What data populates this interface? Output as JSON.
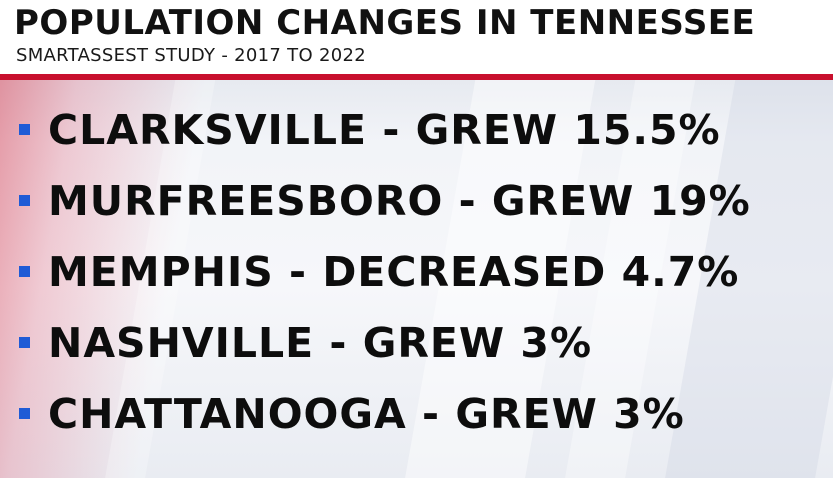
{
  "header": {
    "title": "POPULATION CHANGES IN TENNESSEE",
    "subtitle": "SMARTASSEST STUDY - 2017 TO 2022"
  },
  "items": [
    {
      "text": "CLARKSVILLE - GREW 15.5%"
    },
    {
      "text": "MURFREESBORO - GREW 19%"
    },
    {
      "text": "MEMPHIS - DECREASED 4.7%"
    },
    {
      "text": "NASHVILLE - GREW 3%"
    },
    {
      "text": "CHATTANOOGA - GREW 3%"
    }
  ],
  "colors": {
    "accent_red": "#c8102e",
    "bullet_blue": "#1f5bd6",
    "text": "#0d0d0d"
  }
}
